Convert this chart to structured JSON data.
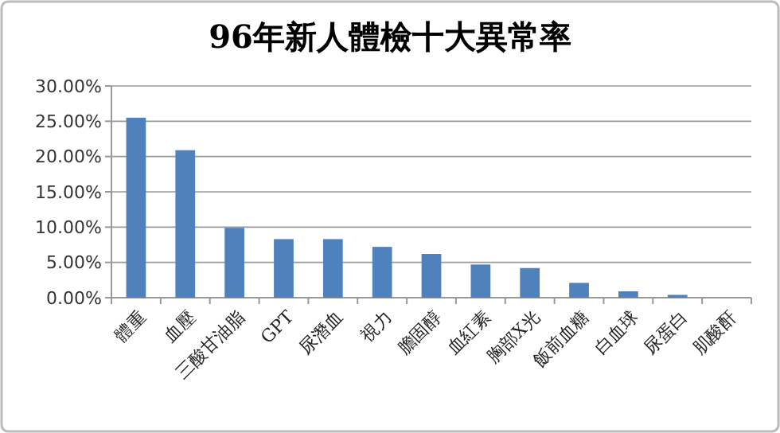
{
  "chart_data": {
    "type": "bar",
    "title": "96年新人體檢十大異常率",
    "categories": [
      "體重",
      "血壓",
      "三酸甘油脂",
      "GPT",
      "尿潛血",
      "視力",
      "膽固醇",
      "血紅素",
      "胸部X光",
      "飯前血糖",
      "白血球",
      "尿蛋白",
      "肌酸酐"
    ],
    "values": [
      25.5,
      20.9,
      9.9,
      8.3,
      8.3,
      7.2,
      6.2,
      4.7,
      4.2,
      2.1,
      0.9,
      0.4,
      0
    ],
    "color": "#4f81bd",
    "ylim": [
      0,
      30
    ],
    "yticks": [
      {
        "value": 0,
        "label": "0.00%"
      },
      {
        "value": 5,
        "label": "5.00%"
      },
      {
        "value": 10,
        "label": "10.00%"
      },
      {
        "value": 15,
        "label": "15.00%"
      },
      {
        "value": 20,
        "label": "20.00%"
      },
      {
        "value": 25,
        "label": "25.00%"
      },
      {
        "value": 30,
        "label": "30.00%"
      }
    ],
    "grid": "y"
  }
}
